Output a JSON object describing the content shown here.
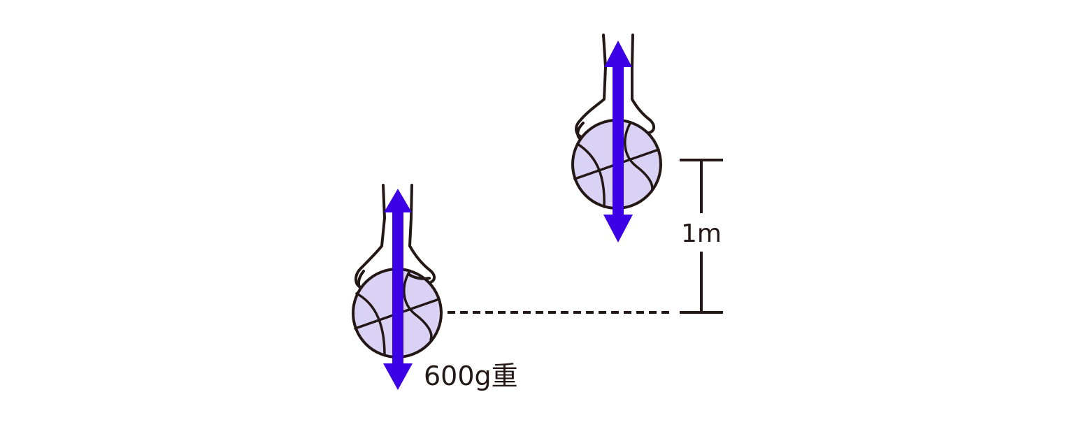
{
  "diagram": {
    "weight_label": "600g重",
    "height_label": "1m"
  },
  "colors": {
    "ink": "#231815",
    "arrow": "#3d00e6",
    "ball_fill": "#d9d2f4"
  },
  "icons": [
    "hand-holding-ball-icon",
    "basketball-icon",
    "force-arrow-icon"
  ]
}
